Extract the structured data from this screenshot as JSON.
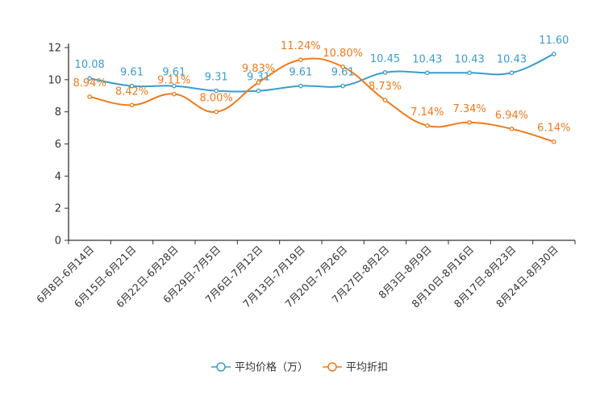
{
  "chart_data": {
    "type": "line",
    "categories": [
      "6月8日-6月14日",
      "6月15日-6月21日",
      "6月22日-6月28日",
      "6月29日-7月5日",
      "7月6日-7月12日",
      "7月13日-7月19日",
      "7月20日-7月26日",
      "7月27日-8月2日",
      "8月3日-8月9日",
      "8月10日-8月16日",
      "8月17日-8月23日",
      "8月24日-8月30日"
    ],
    "ylim": [
      0,
      12
    ],
    "yticks": [
      0,
      2,
      4,
      6,
      8,
      10,
      12
    ],
    "legend_position": "bottom",
    "series": [
      {
        "name": "平均价格（万）",
        "color": "#3a9dcf",
        "values": [
          10.08,
          9.61,
          9.61,
          9.31,
          9.31,
          9.61,
          9.61,
          10.45,
          10.43,
          10.43,
          10.43,
          11.6
        ],
        "labels": [
          "10.08",
          "9.61",
          "9.61",
          "9.31",
          "9.31",
          "9.61",
          "9.61",
          "10.45",
          "10.43",
          "10.43",
          "10.43",
          "11.60"
        ]
      },
      {
        "name": "平均折扣",
        "color": "#f07a1b",
        "values": [
          8.94,
          8.42,
          9.11,
          8.0,
          9.83,
          11.24,
          10.8,
          8.73,
          7.14,
          7.34,
          6.94,
          6.14
        ],
        "labels": [
          "8.94%",
          "8.42%",
          "9.11%",
          "8.00%",
          "9.83%",
          "11.24%",
          "10.80%",
          "8.73%",
          "7.14%",
          "7.34%",
          "6.94%",
          "6.14%"
        ]
      }
    ]
  }
}
